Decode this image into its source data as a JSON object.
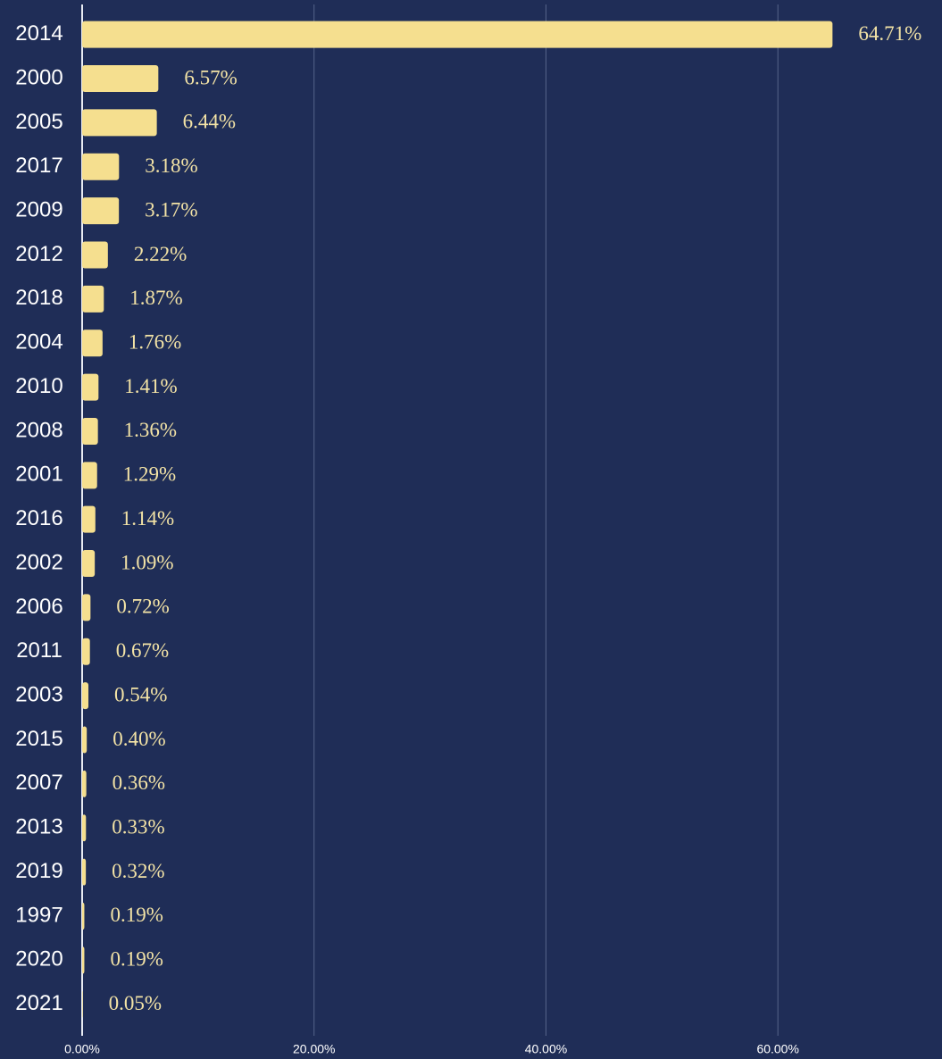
{
  "chart_data": {
    "type": "bar",
    "orientation": "horizontal",
    "categories": [
      "2014",
      "2000",
      "2005",
      "2017",
      "2009",
      "2012",
      "2018",
      "2004",
      "2010",
      "2008",
      "2001",
      "2016",
      "2002",
      "2006",
      "2011",
      "2003",
      "2015",
      "2007",
      "2013",
      "2019",
      "1997",
      "2020",
      "2021"
    ],
    "values": [
      64.71,
      6.57,
      6.44,
      3.18,
      3.17,
      2.22,
      1.87,
      1.76,
      1.41,
      1.36,
      1.29,
      1.14,
      1.09,
      0.72,
      0.67,
      0.54,
      0.4,
      0.36,
      0.33,
      0.32,
      0.19,
      0.19,
      0.05
    ],
    "value_labels": [
      "64.71%",
      "6.57%",
      "6.44%",
      "3.18%",
      "3.17%",
      "2.22%",
      "1.87%",
      "1.76%",
      "1.41%",
      "1.36%",
      "1.29%",
      "1.14%",
      "1.09%",
      "0.72%",
      "0.67%",
      "0.54%",
      "0.40%",
      "0.36%",
      "0.33%",
      "0.32%",
      "0.19%",
      "0.19%",
      "0.05%"
    ],
    "color": "#f5df8f",
    "xlim": [
      0,
      74
    ],
    "xticks": [
      {
        "value": 0,
        "label": "0.00%"
      },
      {
        "value": 20,
        "label": "20.00%"
      },
      {
        "value": 40,
        "label": "40.00%"
      },
      {
        "value": 60,
        "label": "60.00%"
      }
    ],
    "grid": true
  }
}
